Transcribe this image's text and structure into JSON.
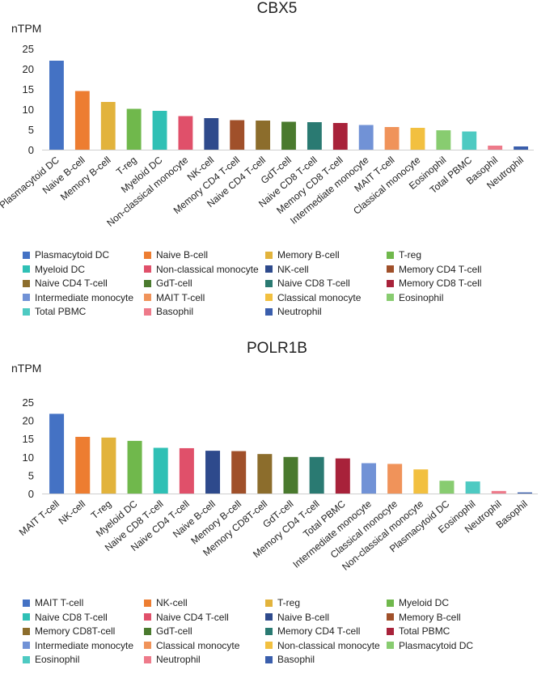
{
  "charts": [
    {
      "id": "cbx5",
      "title": "CBX5",
      "ylabel": "nTPM",
      "ylim": [
        0,
        25
      ],
      "yticks": [
        0,
        5,
        10,
        15,
        20,
        25
      ]
    },
    {
      "id": "polr1b",
      "title": "POLR1B",
      "ylabel": "nTPM",
      "ylim": [
        0,
        25
      ],
      "yticks": [
        0,
        5,
        10,
        15,
        20,
        25
      ]
    }
  ],
  "colors": {
    "Plasmacytoid DC": "#4472c4",
    "Naive B-cell": "#ed7d31",
    "Memory B-cell": "#e2b33c",
    "T-reg": "#70b84c",
    "Myeloid DC": "#2fc0b5",
    "Non-classical monocyte": "#e0506a",
    "NK-cell": "#2e4a8c",
    "Memory CD4 T-cell": "#a0502a",
    "Naive CD4 T-cell": "#8c6d2c",
    "GdT-cell": "#4a7a2e",
    "Naive CD8 T-cell": "#2a7a72",
    "Memory CD8 T-cell": "#a8223a",
    "Intermediate monocyte": "#7192d6",
    "MAIT T-cell": "#f0935a",
    "Classical monocyte": "#f2c040",
    "Eosinophil": "#88cc70",
    "Total PBMC": "#4ecac2",
    "Basophil": "#ee7a8a",
    "Neutrophil": "#3a5eac"
  },
  "chart_data": [
    {
      "type": "bar",
      "title": "CBX5",
      "xlabel": "",
      "ylabel": "nTPM",
      "ylim": [
        0,
        25
      ],
      "categories": [
        "Plasmacytoid DC",
        "Naive B-cell",
        "Memory B-cell",
        "T-reg",
        "Myeloid DC",
        "Non-classical monocyte",
        "NK-cell",
        "Memory CD4 T-cell",
        "Naive CD4 T-cell",
        "GdT-cell",
        "Naive CD8 T-cell",
        "Memory CD8 T-cell",
        "Intermediate monocyte",
        "MAIT T-cell",
        "Classical monocyte",
        "Eosinophil",
        "Total PBMC",
        "Basophil",
        "Neutrophil"
      ],
      "values": [
        22.0,
        14.5,
        11.8,
        10.1,
        9.6,
        8.3,
        7.8,
        7.3,
        7.2,
        6.9,
        6.8,
        6.6,
        6.1,
        5.6,
        5.4,
        4.8,
        4.5,
        1.0,
        0.8
      ],
      "colors": [
        "#4472c4",
        "#ed7d31",
        "#e2b33c",
        "#70b84c",
        "#2fc0b5",
        "#e0506a",
        "#2e4a8c",
        "#a0502a",
        "#8c6d2c",
        "#4a7a2e",
        "#2a7a72",
        "#a8223a",
        "#7192d6",
        "#f0935a",
        "#f2c040",
        "#88cc70",
        "#4ecac2",
        "#ee7a8a",
        "#3a5eac"
      ],
      "legend": [
        "Plasmacytoid DC",
        "Naive B-cell",
        "Memory B-cell",
        "T-reg",
        "Myeloid DC",
        "Non-classical monocyte",
        "NK-cell",
        "Memory CD4 T-cell",
        "Naive CD4 T-cell",
        "GdT-cell",
        "Naive CD8 T-cell",
        "Memory CD8 T-cell",
        "Intermediate monocyte",
        "MAIT T-cell",
        "Classical monocyte",
        "Eosinophil",
        "Total PBMC",
        "Basophil",
        "Neutrophil"
      ]
    },
    {
      "type": "bar",
      "title": "POLR1B",
      "xlabel": "",
      "ylabel": "nTPM",
      "ylim": [
        0,
        25
      ],
      "categories": [
        "MAIT T-cell",
        "NK-cell",
        "T-reg",
        "Myeloid DC",
        "Naive CD8 T-cell",
        "Naive CD4 T-cell",
        "Naive B-cell",
        "Memory B-cell",
        "Memory CD8T-cell",
        "GdT-cell",
        "Memory CD4 T-cell",
        "Total PBMC",
        "Intermediate monocyte",
        "Classical monocyte",
        "Non-classical monocyte",
        "Plasmacytoid DC",
        "Eosinophil",
        "Neutrophil",
        "Basophil"
      ],
      "values": [
        21.8,
        15.5,
        15.3,
        14.4,
        12.5,
        12.4,
        11.7,
        11.6,
        10.8,
        10.0,
        10.0,
        9.6,
        8.3,
        8.1,
        6.6,
        3.5,
        3.3,
        0.7,
        0.3
      ],
      "colors": [
        "#4472c4",
        "#ed7d31",
        "#e2b33c",
        "#70b84c",
        "#2fc0b5",
        "#e0506a",
        "#2e4a8c",
        "#a0502a",
        "#8c6d2c",
        "#4a7a2e",
        "#2a7a72",
        "#a8223a",
        "#7192d6",
        "#f0935a",
        "#f2c040",
        "#88cc70",
        "#4ecac2",
        "#ee7a8a",
        "#3a5eac"
      ],
      "legend": [
        "MAIT T-cell",
        "NK-cell",
        "T-reg",
        "Myeloid DC",
        "Naive CD8 T-cell",
        "Naive CD4 T-cell",
        "Naive B-cell",
        "Memory B-cell",
        "Memory CD8T-cell",
        "GdT-cell",
        "Memory CD4 T-cell",
        "Total PBMC",
        "Intermediate monocyte",
        "Classical monocyte",
        "Non-classical monocyte",
        "Plasmacytoid DC",
        "Eosinophil",
        "Neutrophil",
        "Basophil"
      ]
    }
  ]
}
